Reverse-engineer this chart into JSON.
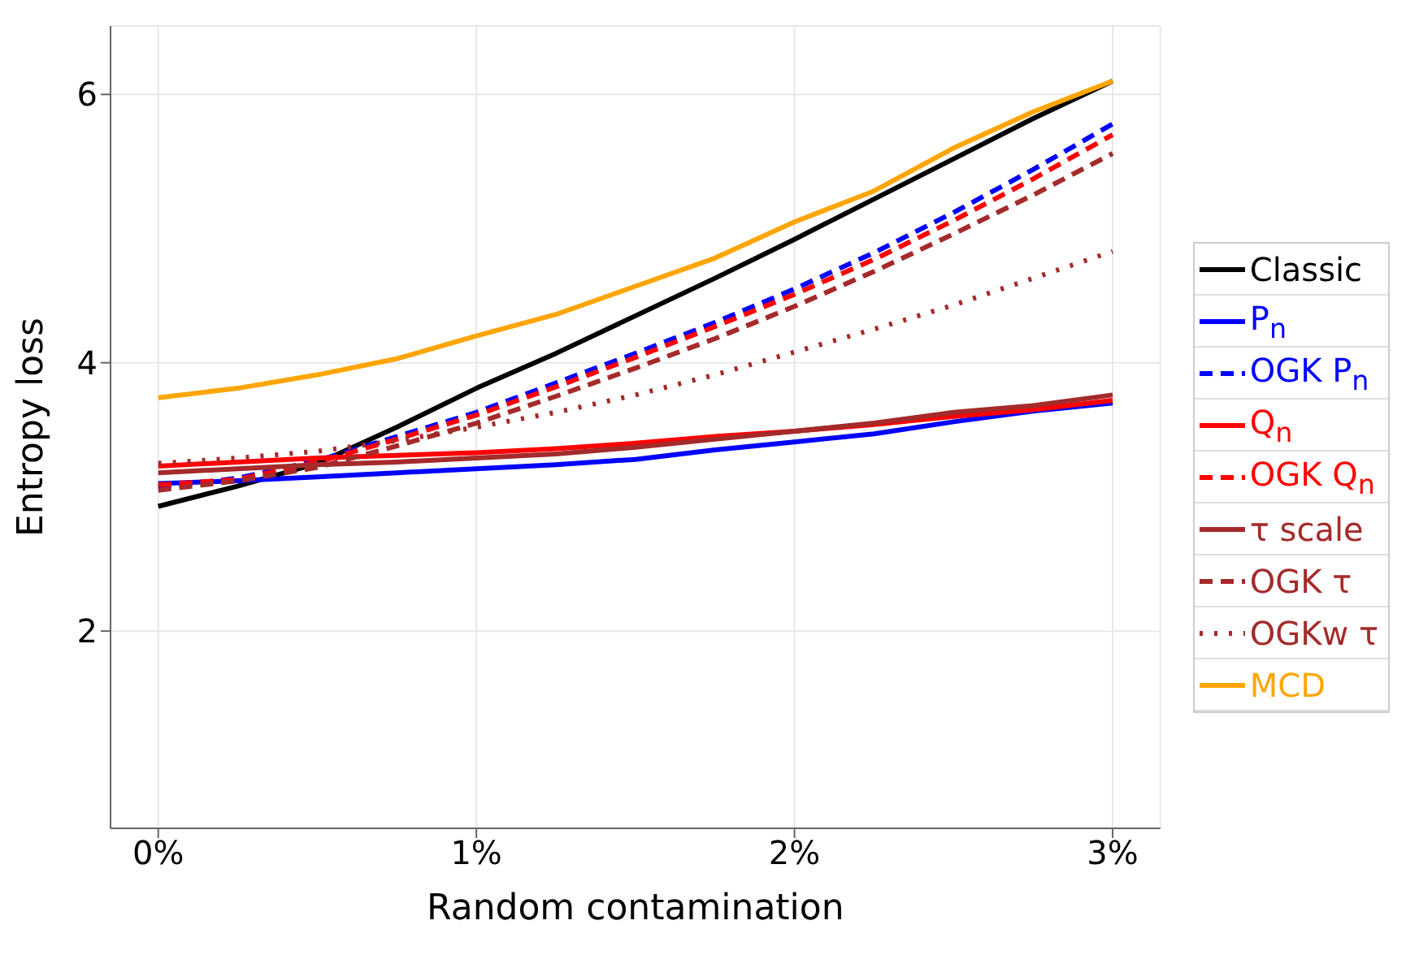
{
  "chart_data": {
    "type": "line",
    "xlabel": "Random contamination",
    "ylabel": "Entropy loss",
    "x": [
      0,
      0.25,
      0.5,
      0.75,
      1,
      1.25,
      1.5,
      1.75,
      2,
      2.25,
      2.5,
      2.75,
      3
    ],
    "xlim": [
      -0.15,
      3.15
    ],
    "xticks": [
      {
        "value": 0,
        "label": "0%"
      },
      {
        "value": 1,
        "label": "1%"
      },
      {
        "value": 2,
        "label": "2%"
      },
      {
        "value": 3,
        "label": "3%"
      }
    ],
    "ylim": [
      0.53,
      6.51
    ],
    "yticks": [
      2,
      4,
      6
    ],
    "grid": true,
    "legend": "right",
    "marker": "none",
    "series": [
      {
        "name": "Classic",
        "color": "#000000",
        "line_style": "solid",
        "values": [
          2.93,
          3.08,
          3.25,
          3.52,
          3.81,
          4.07,
          4.35,
          4.63,
          4.92,
          5.22,
          5.52,
          5.82,
          6.1
        ]
      },
      {
        "name": "P$_{n}$",
        "color": "#0000ff",
        "line_style": "solid",
        "values": [
          3.1,
          3.12,
          3.15,
          3.18,
          3.21,
          3.24,
          3.28,
          3.35,
          3.41,
          3.47,
          3.56,
          3.64,
          3.7
        ]
      },
      {
        "name": "OGK P$_{n}$",
        "color": "#0000ff",
        "line_style": "dashed",
        "values": [
          3.07,
          3.14,
          3.27,
          3.45,
          3.63,
          3.85,
          4.07,
          4.3,
          4.55,
          4.82,
          5.12,
          5.44,
          5.78
        ]
      },
      {
        "name": "Q$_{n}$",
        "color": "#ff0000",
        "line_style": "solid",
        "values": [
          3.23,
          3.26,
          3.29,
          3.31,
          3.33,
          3.36,
          3.4,
          3.45,
          3.49,
          3.54,
          3.6,
          3.65,
          3.72
        ]
      },
      {
        "name": "OGK Q$_{n}$",
        "color": "#ff0000",
        "line_style": "dashed",
        "values": [
          3.09,
          3.13,
          3.26,
          3.43,
          3.61,
          3.82,
          4.04,
          4.27,
          4.51,
          4.77,
          5.06,
          5.37,
          5.7
        ]
      },
      {
        "name": "τ scale",
        "color": "#a52a2a",
        "line_style": "solid",
        "values": [
          3.18,
          3.21,
          3.24,
          3.26,
          3.29,
          3.32,
          3.37,
          3.43,
          3.49,
          3.55,
          3.63,
          3.68,
          3.76
        ]
      },
      {
        "name": "OGK τ",
        "color": "#a52a2a",
        "line_style": "dashed",
        "values": [
          3.05,
          3.12,
          3.22,
          3.38,
          3.55,
          3.75,
          3.96,
          4.18,
          4.42,
          4.68,
          4.96,
          5.25,
          5.56
        ]
      },
      {
        "name": "OGKw τ",
        "color": "#a52a2a",
        "line_style": "dotted",
        "values": [
          3.25,
          3.29,
          3.34,
          3.42,
          3.52,
          3.63,
          3.76,
          3.91,
          4.08,
          4.25,
          4.43,
          4.63,
          4.83
        ]
      },
      {
        "name": "MCD",
        "color": "#ffa500",
        "line_style": "solid",
        "values": [
          3.74,
          3.81,
          3.91,
          4.03,
          4.2,
          4.36,
          4.57,
          4.78,
          5.05,
          5.28,
          5.6,
          5.87,
          6.1
        ]
      }
    ]
  }
}
